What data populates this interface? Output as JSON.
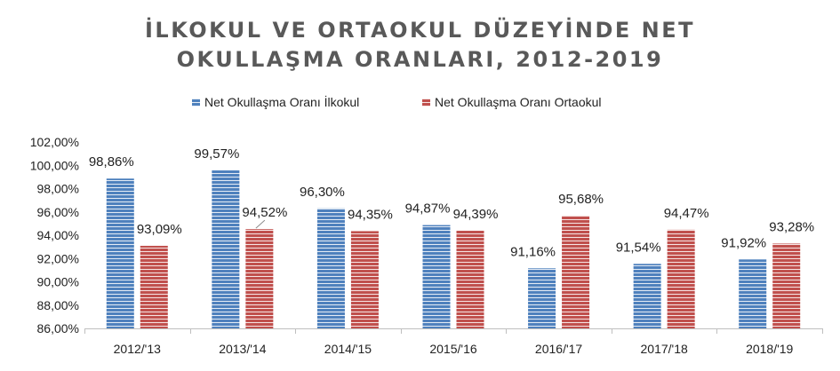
{
  "title_line1": "İLKOKUL VE ORTAOKUL DÜZEYİNDE NET",
  "title_line2": "OKULLAŞMA ORANLARI, 2012-2019",
  "colors": {
    "series1": "#4f81bd",
    "series2": "#c0504d",
    "stripe": "#ffffff",
    "axis": "#bfbfbf"
  },
  "chart_data": {
    "type": "bar",
    "title": "İLKOKUL VE ORTAOKUL DÜZEYİNDE NET OKULLAŞMA ORANLARI, 2012-2019",
    "categories": [
      "2012/'13",
      "2013/'14",
      "2014/'15",
      "2015/'16",
      "2016/'17",
      "2017/'18",
      "2018/'19"
    ],
    "series": [
      {
        "name": "Net Okullaşma Oranı İlkokul",
        "values": [
          98.86,
          99.57,
          96.3,
          94.87,
          91.16,
          91.54,
          91.92
        ],
        "labels": [
          "98,86%",
          "99,57%",
          "96,30%",
          "94,87%",
          "91,16%",
          "91,54%",
          "91,92%"
        ]
      },
      {
        "name": "Net Okullaşma Oranı Ortaokul",
        "values": [
          93.09,
          94.52,
          94.35,
          94.39,
          95.68,
          94.47,
          93.28
        ],
        "labels": [
          "93,09%",
          "94,52%",
          "94,35%",
          "94,39%",
          "95,68%",
          "94,47%",
          "93,28%"
        ]
      }
    ],
    "ylim": [
      86,
      102
    ],
    "yticks": [
      86,
      88,
      90,
      92,
      94,
      96,
      98,
      100,
      102
    ],
    "ytick_labels": [
      "86,00%",
      "88,00%",
      "90,00%",
      "92,00%",
      "94,00%",
      "96,00%",
      "98,00%",
      "100,00%",
      "102,00%"
    ],
    "grid": false,
    "legend_position": "top"
  }
}
